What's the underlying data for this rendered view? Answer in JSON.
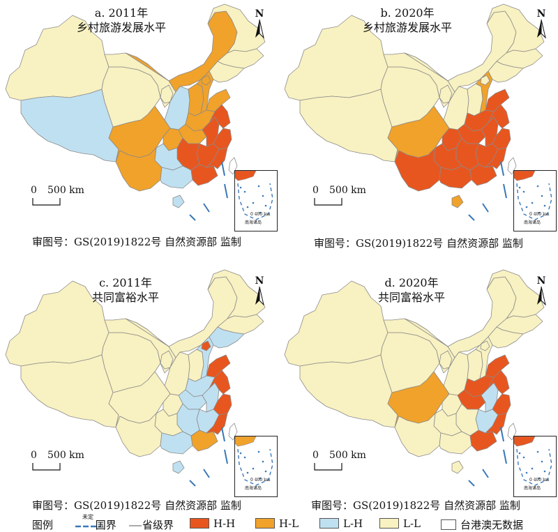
{
  "colors": {
    "HH": "#E8561F",
    "HL": "#F0A22B",
    "LH": "#BFE0F0",
    "LL": "#F8F1C1",
    "nodata": "#FFFFFF",
    "province_border": "#8A8A8A",
    "national_border": "#3A78B8"
  },
  "panels": [
    {
      "id": "a",
      "title_line1": "a. 2011年",
      "title_line2": "乡村旅游发展水平",
      "north": "N",
      "scale_zero": "0",
      "scale_label": "500 km",
      "review": "审图号：GS(2019)1822号 自然资源部 监制",
      "inset_scale": "0 400 km",
      "inset_label": "南海诸岛"
    },
    {
      "id": "b",
      "title_line1": "b. 2020年",
      "title_line2": "乡村旅游发展水平",
      "north": "N",
      "scale_zero": "0",
      "scale_label": "500 km",
      "review": "审图号：GS(2019)1822号 自然资源部 监制",
      "inset_scale": "0 400 km",
      "inset_label": "南海诸岛"
    },
    {
      "id": "c",
      "title_line1": "c. 2011年",
      "title_line2": "共同富裕水平",
      "north": "N",
      "scale_zero": "0",
      "scale_label": "500 km",
      "review": "审图号：GS(2019)1822号 自然资源部 监制",
      "inset_scale": "0 400 km",
      "inset_label": "南海诸岛"
    },
    {
      "id": "d",
      "title_line1": "d. 2020年",
      "title_line2": "共同富裕水平",
      "north": "N",
      "scale_zero": "0",
      "scale_label": "500 km",
      "review": "审图号：GS(2019)1822号 自然资源部 监制",
      "inset_scale": "0 400 km",
      "inset_label": "南海诸岛"
    }
  ],
  "map_classes": {
    "a": {
      "xinjiang": "L-L",
      "tibet": "L-H",
      "qinghai": "L-L",
      "gansu": "L-L",
      "inner_mongolia": "H-L",
      "heilongjiang": "L-L",
      "jilin": "L-L",
      "liaoning": "L-L",
      "ningxia": "L-L",
      "shaanxi": "L-H",
      "shanxi": "H-L",
      "hebei": "H-L",
      "beijing": "H-L",
      "shandong": "H-L",
      "henan": "H-L",
      "sichuan": "H-L",
      "chongqing": "H-L",
      "hubei": "H-L",
      "anhui": "H-H",
      "jiangsu": "H-H",
      "zhejiang": "H-H",
      "jiangxi": "H-H",
      "hunan": "H-H",
      "guizhou": "L-H",
      "yunnan": "H-L",
      "guangxi": "L-H",
      "guangdong": "H-H",
      "fujian": "H-H",
      "hainan": "L-H",
      "taiwan": "nodata"
    },
    "b": {
      "xinjiang": "L-L",
      "tibet": "L-L",
      "qinghai": "L-L",
      "gansu": "L-L",
      "inner_mongolia": "L-L",
      "heilongjiang": "L-L",
      "jilin": "L-L",
      "liaoning": "L-L",
      "ningxia": "L-L",
      "shaanxi": "L-L",
      "shanxi": "L-L",
      "hebei": "H-L",
      "beijing": "L-L",
      "shandong": "H-H",
      "henan": "H-H",
      "sichuan": "H-L",
      "chongqing": "H-H",
      "hubei": "H-H",
      "anhui": "H-H",
      "jiangsu": "H-H",
      "zhejiang": "H-H",
      "jiangxi": "H-H",
      "hunan": "H-H",
      "guizhou": "H-H",
      "yunnan": "H-H",
      "guangxi": "H-H",
      "guangdong": "H-H",
      "fujian": "H-H",
      "hainan": "H-L",
      "taiwan": "nodata"
    },
    "c": {
      "xinjiang": "L-L",
      "tibet": "L-L",
      "qinghai": "L-L",
      "gansu": "L-L",
      "inner_mongolia": "L-L",
      "heilongjiang": "L-L",
      "jilin": "L-L",
      "liaoning": "L-H",
      "ningxia": "L-L",
      "shaanxi": "L-L",
      "shanxi": "L-L",
      "hebei": "L-H",
      "beijing": "H-H",
      "shandong": "H-H",
      "henan": "L-H",
      "sichuan": "L-L",
      "chongqing": "L-L",
      "hubei": "L-H",
      "anhui": "L-H",
      "jiangsu": "H-H",
      "zhejiang": "H-H",
      "jiangxi": "L-H",
      "hunan": "L-H",
      "guizhou": "L-L",
      "yunnan": "L-L",
      "guangxi": "L-H",
      "guangdong": "H-L",
      "fujian": "H-H",
      "hainan": "L-H",
      "taiwan": "nodata"
    },
    "d": {
      "xinjiang": "L-L",
      "tibet": "L-L",
      "qinghai": "L-L",
      "gansu": "L-L",
      "inner_mongolia": "L-L",
      "heilongjiang": "L-L",
      "jilin": "L-L",
      "liaoning": "L-L",
      "ningxia": "L-L",
      "shaanxi": "L-L",
      "shanxi": "L-L",
      "hebei": "L-L",
      "beijing": "L-L",
      "shandong": "H-H",
      "henan": "H-H",
      "sichuan": "H-L",
      "chongqing": "L-L",
      "hubei": "H-H",
      "anhui": "L-H",
      "jiangsu": "H-H",
      "zhejiang": "H-H",
      "jiangxi": "L-H",
      "hunan": "L-L",
      "guizhou": "L-L",
      "yunnan": "L-L",
      "guangxi": "L-L",
      "guangdong": "H-H",
      "fujian": "H-H",
      "hainan": "L-L",
      "taiwan": "nodata"
    }
  },
  "legend": {
    "title": "图例",
    "national_border_tag": "未定",
    "national_border": "国界",
    "province_border": "省级界",
    "hh": "H-H",
    "hl": "H-L",
    "lh": "L-H",
    "ll": "L-L",
    "nodata": "台港澳无数据"
  }
}
